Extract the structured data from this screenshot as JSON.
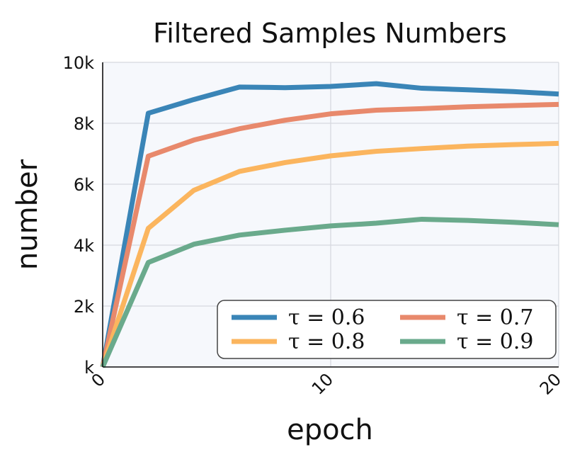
{
  "chart_data": {
    "type": "line",
    "title": "Filtered Samples Numbers",
    "xlabel": "epoch",
    "ylabel": "number",
    "xlim": [
      0,
      20
    ],
    "ylim": [
      0,
      10000
    ],
    "x_ticks": [
      {
        "value": 0,
        "label": "0"
      },
      {
        "value": 10,
        "label": "10"
      },
      {
        "value": 20,
        "label": "20"
      }
    ],
    "y_ticks": [
      {
        "value": 0,
        "label": "k"
      },
      {
        "value": 2000,
        "label": "2k"
      },
      {
        "value": 4000,
        "label": "4k"
      },
      {
        "value": 6000,
        "label": "6k"
      },
      {
        "value": 8000,
        "label": "8k"
      },
      {
        "value": 10000,
        "label": "10k"
      }
    ],
    "grid": true,
    "legend_position": "bottom-right",
    "x": [
      0,
      2,
      4,
      6,
      8,
      10,
      12,
      14,
      16,
      18,
      20
    ],
    "series": [
      {
        "name": "τ = 0.6",
        "color": "#3a85b7",
        "values": [
          0,
          8330,
          8780,
          9190,
          9170,
          9210,
          9300,
          9150,
          9100,
          9040,
          8960
        ]
      },
      {
        "name": "τ = 0.7",
        "color": "#e8896c",
        "values": [
          0,
          6920,
          7450,
          7820,
          8100,
          8310,
          8430,
          8480,
          8540,
          8580,
          8620
        ]
      },
      {
        "name": "τ = 0.8",
        "color": "#fbb55e",
        "values": [
          0,
          4550,
          5800,
          6420,
          6710,
          6930,
          7080,
          7170,
          7250,
          7300,
          7340
        ]
      },
      {
        "name": "τ = 0.9",
        "color": "#6aaa8c",
        "values": [
          0,
          3430,
          4030,
          4330,
          4490,
          4630,
          4720,
          4850,
          4810,
          4750,
          4670
        ]
      }
    ],
    "colors": {
      "plot_background": "#f6f8fc",
      "grid": "#d5d8de",
      "axis": "#111111"
    }
  }
}
